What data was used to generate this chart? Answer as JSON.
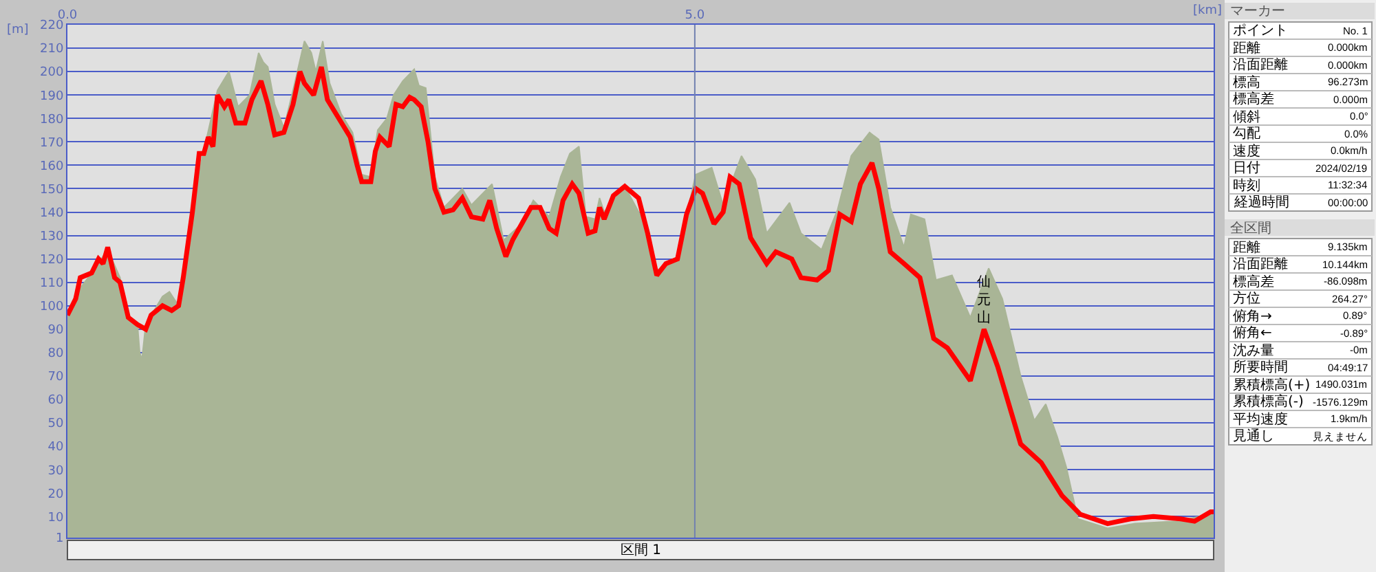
{
  "chart_data": [
    {
      "type": "line",
      "xlabel": "[km]",
      "ylabel": "[m]",
      "xlim": [
        0,
        9.135
      ],
      "xticks": [
        {
          "value": 0,
          "label": "0.0"
        },
        {
          "value": 5,
          "label": "5.0"
        }
      ],
      "ylim": [
        1,
        220
      ],
      "yticks": [
        1,
        10,
        20,
        30,
        40,
        50,
        60,
        70,
        80,
        90,
        100,
        110,
        120,
        130,
        140,
        150,
        160,
        170,
        180,
        190,
        200,
        210,
        220
      ],
      "grid": "y",
      "ref_lines": [
        {
          "axis": "x",
          "value": 5,
          "color": "#7080b0"
        }
      ],
      "marker": "none",
      "line_style": "solid",
      "series": [
        {
          "type": "area",
          "color": "#a9b596",
          "x": [
            0,
            0.066,
            0.193,
            0.321,
            0.419,
            0.485,
            0.558,
            0.576,
            0.594,
            0.624,
            0.758,
            0.813,
            0.886,
            0.923,
            0.996,
            1.069,
            1.196,
            1.287,
            1.36,
            1.452,
            1.524,
            1.561,
            1.597,
            1.652,
            1.725,
            1.798,
            1.889,
            1.944,
            1.98,
            2.035,
            2.09,
            2.181,
            2.272,
            2.345,
            2.418,
            2.473,
            2.546,
            2.6,
            2.673,
            2.764,
            2.801,
            2.856,
            2.928,
            3.001,
            3.147,
            3.22,
            3.384,
            3.476,
            3.621,
            3.713,
            3.84,
            3.931,
            4.004,
            4.077,
            4.132,
            4.205,
            4.241,
            4.278,
            4.442,
            4.624,
            4.697,
            4.862,
            5.007,
            5.135,
            5.226,
            5.372,
            5.482,
            5.573,
            5.755,
            5.846,
            6.01,
            6.138,
            6.247,
            6.393,
            6.466,
            6.558,
            6.667,
            6.722,
            6.831,
            6.922,
            7.05,
            7.196,
            7.342,
            7.451,
            7.597,
            7.706,
            7.797,
            7.889,
            7.961,
            8.053,
            8.29,
            8.509,
            8.837,
            9.111,
            9.135
          ],
          "values": [
            96,
            105,
            114,
            124,
            112,
            96,
            92,
            80,
            77,
            92,
            104,
            106,
            100,
            112,
            140,
            162,
            192,
            200,
            185,
            190,
            208,
            204,
            202,
            186,
            176,
            192,
            213,
            208,
            200,
            213,
            195,
            182,
            174,
            156,
            155,
            175,
            180,
            190,
            196,
            201,
            194,
            193,
            155,
            142,
            150,
            143,
            152,
            128,
            135,
            145,
            138,
            155,
            165,
            168,
            138,
            137,
            146,
            140,
            151,
            133,
            115,
            121,
            156,
            159,
            143,
            164,
            154,
            131,
            144,
            131,
            124,
            141,
            164,
            174,
            171,
            142,
            125,
            139,
            137,
            111,
            113,
            95,
            116,
            103,
            70,
            51,
            58,
            44,
            31,
            9,
            5,
            7,
            8,
            11,
            12
          ]
        },
        {
          "type": "line",
          "color": "#ff0000",
          "x": [
            0,
            0.066,
            0.102,
            0.193,
            0.248,
            0.284,
            0.321,
            0.376,
            0.419,
            0.485,
            0.558,
            0.624,
            0.667,
            0.758,
            0.831,
            0.886,
            0.923,
            0.996,
            1.05,
            1.087,
            1.123,
            1.16,
            1.196,
            1.251,
            1.287,
            1.342,
            1.415,
            1.47,
            1.543,
            1.597,
            1.652,
            1.725,
            1.798,
            1.853,
            1.889,
            1.962,
            2.024,
            2.072,
            2.163,
            2.254,
            2.309,
            2.345,
            2.418,
            2.454,
            2.491,
            2.564,
            2.619,
            2.673,
            2.728,
            2.764,
            2.819,
            2.874,
            2.928,
            3.001,
            3.074,
            3.147,
            3.22,
            3.311,
            3.366,
            3.421,
            3.494,
            3.548,
            3.621,
            3.694,
            3.767,
            3.84,
            3.895,
            3.95,
            4.023,
            4.077,
            4.15,
            4.205,
            4.241,
            4.278,
            4.351,
            4.442,
            4.552,
            4.624,
            4.697,
            4.77,
            4.862,
            4.934,
            5.007,
            5.062,
            5.153,
            5.226,
            5.281,
            5.354,
            5.445,
            5.573,
            5.646,
            5.773,
            5.846,
            5.974,
            6.065,
            6.156,
            6.247,
            6.32,
            6.412,
            6.466,
            6.558,
            6.667,
            6.794,
            6.904,
            7.013,
            7.196,
            7.305,
            7.414,
            7.597,
            7.761,
            7.925,
            8.071,
            8.29,
            8.472,
            8.655,
            8.873,
            8.983,
            9.111,
            9.135
          ],
          "values": [
            96,
            103,
            112,
            114,
            120,
            118,
            125,
            112,
            110,
            95,
            92,
            90,
            96,
            100,
            98,
            100,
            112,
            140,
            165,
            165,
            172,
            168,
            190,
            185,
            188,
            178,
            178,
            188,
            196,
            186,
            173,
            174,
            186,
            200,
            195,
            190,
            202,
            188,
            180,
            172,
            160,
            153,
            153,
            166,
            172,
            168,
            186,
            185,
            189,
            188,
            185,
            170,
            150,
            140,
            141,
            146,
            138,
            137,
            145,
            133,
            121,
            128,
            135,
            142,
            142,
            133,
            131,
            145,
            152,
            148,
            131,
            132,
            142,
            137,
            147,
            151,
            146,
            131,
            113,
            118,
            120,
            139,
            150,
            148,
            135,
            140,
            155,
            152,
            129,
            118,
            123,
            120,
            112,
            111,
            115,
            139,
            136,
            152,
            161,
            150,
            123,
            118,
            112,
            86,
            82,
            68,
            90,
            74,
            41,
            33,
            19,
            11,
            7,
            9,
            10,
            9,
            8,
            12,
            12
          ]
        }
      ],
      "annotations": [
        {
          "text": "仙元山",
          "x": 7.305,
          "y": 90
        },
        "区間 1"
      ]
    },
    {
      "type": "other",
      "title": "マーカー",
      "categories": [
        "ポイント",
        "距離",
        "沿面距離",
        "標高",
        "標高差",
        "傾斜",
        "勾配",
        "速度",
        "日付",
        "時刻",
        "経過時間"
      ],
      "value_labels": [
        "No. 1",
        "0.000km",
        "0.000km",
        "96.273m",
        "0.000m",
        "0.0°",
        "0.0%",
        "0.0km/h",
        "2024/02/19",
        "11:32:34",
        "00:00:00"
      ]
    },
    {
      "type": "other",
      "title": "全区間",
      "categories": [
        "距離",
        "沿面距離",
        "標高差",
        "方位",
        "俯角→",
        "俯角←",
        "沈み量",
        "所要時間",
        "累積標高(+)",
        "累積標高(-)",
        "平均速度",
        "見通し"
      ],
      "value_labels": [
        "9.135km",
        "10.144km",
        "-86.098m",
        "264.27°",
        "0.89°",
        "-0.89°",
        "-0m",
        "04:49:17",
        "1490.031m",
        "-1576.129m",
        "1.9km/h",
        "見えません"
      ]
    }
  ]
}
